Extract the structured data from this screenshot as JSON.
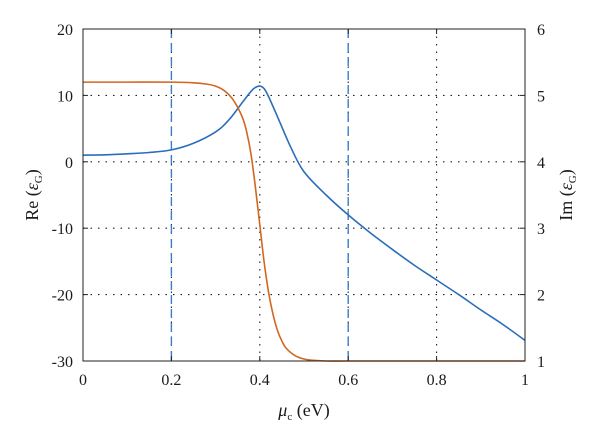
{
  "chart_data": {
    "type": "line",
    "xlabel": {
      "symbol": "μ",
      "sub": "c",
      "unit": " (eV)"
    },
    "ylabel_left": {
      "prefix": "Re (",
      "symbol": "ε",
      "sub": "G",
      "suffix": ")"
    },
    "ylabel_right": {
      "prefix": "Im (",
      "symbol": "ε",
      "sub": "G",
      "suffix": ")"
    },
    "xlim": [
      0,
      1
    ],
    "ylim_left": [
      -30,
      20
    ],
    "ylim_right": [
      1,
      6
    ],
    "xticks": [
      "0",
      "0.2",
      "0.4",
      "0.6",
      "0.8",
      "1"
    ],
    "yticks_left": [
      "-30",
      "-20",
      "-10",
      "0",
      "10",
      "20"
    ],
    "yticks_right": [
      "1",
      "2",
      "3",
      "4",
      "5",
      "6"
    ],
    "grid": true,
    "vlines": [
      {
        "x": 0.2,
        "color": "#3b7dc9",
        "style": "dashed"
      },
      {
        "x": 0.6,
        "color": "#3b7dc9",
        "style": "dashed"
      }
    ],
    "series": [
      {
        "axis": "left",
        "color": "#2a6ebb",
        "x": [
          0,
          0.05,
          0.1,
          0.15,
          0.2,
          0.25,
          0.3,
          0.33,
          0.36,
          0.38,
          0.39,
          0.4,
          0.41,
          0.42,
          0.44,
          0.47,
          0.5,
          0.55,
          0.6,
          0.65,
          0.7,
          0.75,
          0.8,
          0.85,
          0.9,
          0.95,
          1.0
        ],
        "y": [
          1.0,
          1.05,
          1.2,
          1.4,
          1.8,
          2.8,
          4.5,
          6.3,
          8.9,
          10.6,
          11.2,
          11.4,
          11.0,
          9.8,
          6.8,
          2.2,
          -1.5,
          -5.0,
          -8.0,
          -10.7,
          -13.2,
          -15.6,
          -17.8,
          -20.0,
          -22.3,
          -24.5,
          -26.9
        ]
      },
      {
        "axis": "right",
        "color": "#d4661f",
        "x": [
          0,
          0.1,
          0.2,
          0.25,
          0.28,
          0.3,
          0.32,
          0.34,
          0.36,
          0.37,
          0.38,
          0.39,
          0.4,
          0.41,
          0.42,
          0.43,
          0.44,
          0.45,
          0.46,
          0.48,
          0.5,
          0.52,
          0.55,
          0.6,
          0.7,
          0.8,
          1.0
        ],
        "y": [
          5.2,
          5.2,
          5.2,
          5.19,
          5.17,
          5.14,
          5.07,
          4.93,
          4.68,
          4.46,
          4.12,
          3.62,
          3.05,
          2.48,
          2.03,
          1.7,
          1.46,
          1.3,
          1.19,
          1.08,
          1.03,
          1.01,
          1.0,
          1.0,
          1.0,
          1.0,
          1.0
        ]
      }
    ]
  }
}
